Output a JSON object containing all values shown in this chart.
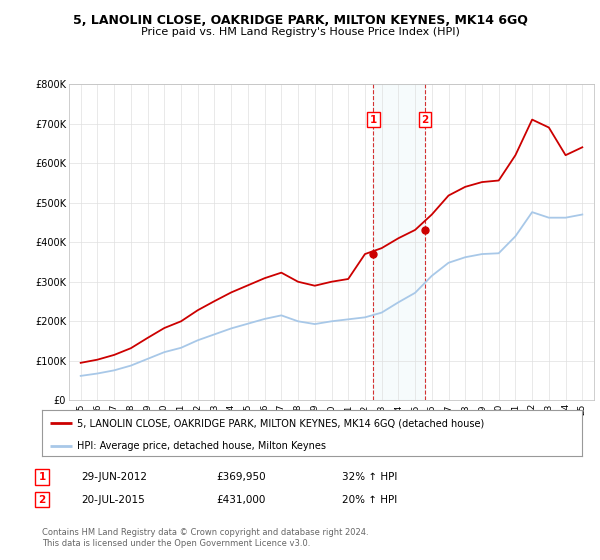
{
  "title": "5, LANOLIN CLOSE, OAKRIDGE PARK, MILTON KEYNES, MK14 6GQ",
  "subtitle": "Price paid vs. HM Land Registry's House Price Index (HPI)",
  "ylabel_ticks": [
    "£0",
    "£100K",
    "£200K",
    "£300K",
    "£400K",
    "£500K",
    "£600K",
    "£700K",
    "£800K"
  ],
  "ytick_values": [
    0,
    100000,
    200000,
    300000,
    400000,
    500000,
    600000,
    700000,
    800000
  ],
  "ylim": [
    0,
    800000
  ],
  "hpi_color": "#a8c8e8",
  "price_color": "#cc0000",
  "marker1_x": 2012.5,
  "marker1_value": 369950,
  "marker2_x": 2015.58,
  "marker2_value": 431000,
  "legend_label_price": "5, LANOLIN CLOSE, OAKRIDGE PARK, MILTON KEYNES, MK14 6GQ (detached house)",
  "legend_label_hpi": "HPI: Average price, detached house, Milton Keynes",
  "annotation1_date": "29-JUN-2012",
  "annotation1_price": "£369,950",
  "annotation1_hpi": "32% ↑ HPI",
  "annotation2_date": "20-JUL-2015",
  "annotation2_price": "£431,000",
  "annotation2_hpi": "20% ↑ HPI",
  "footer": "Contains HM Land Registry data © Crown copyright and database right 2024.\nThis data is licensed under the Open Government Licence v3.0.",
  "title_fontsize": 9,
  "subtitle_fontsize": 8,
  "background_color": "#ffffff",
  "grid_color": "#e0e0e0",
  "years": [
    1995,
    1996,
    1997,
    1998,
    1999,
    2000,
    2001,
    2002,
    2003,
    2004,
    2005,
    2006,
    2007,
    2008,
    2009,
    2010,
    2011,
    2012,
    2013,
    2014,
    2015,
    2016,
    2017,
    2018,
    2019,
    2020,
    2021,
    2022,
    2023,
    2024,
    2025
  ],
  "hpi_vals": [
    62000,
    68000,
    76000,
    88000,
    105000,
    122000,
    133000,
    152000,
    167000,
    182000,
    194000,
    206000,
    215000,
    200000,
    193000,
    200000,
    205000,
    210000,
    222000,
    248000,
    272000,
    315000,
    348000,
    362000,
    370000,
    372000,
    415000,
    476000,
    462000,
    462000,
    470000
  ],
  "price_vals": [
    95000,
    103000,
    115000,
    132000,
    158000,
    183000,
    200000,
    228000,
    251000,
    273000,
    291000,
    309000,
    323000,
    300000,
    290000,
    300000,
    307000,
    370000,
    385000,
    410000,
    431000,
    470000,
    518000,
    540000,
    552000,
    556000,
    620000,
    710000,
    690000,
    620000,
    640000
  ]
}
